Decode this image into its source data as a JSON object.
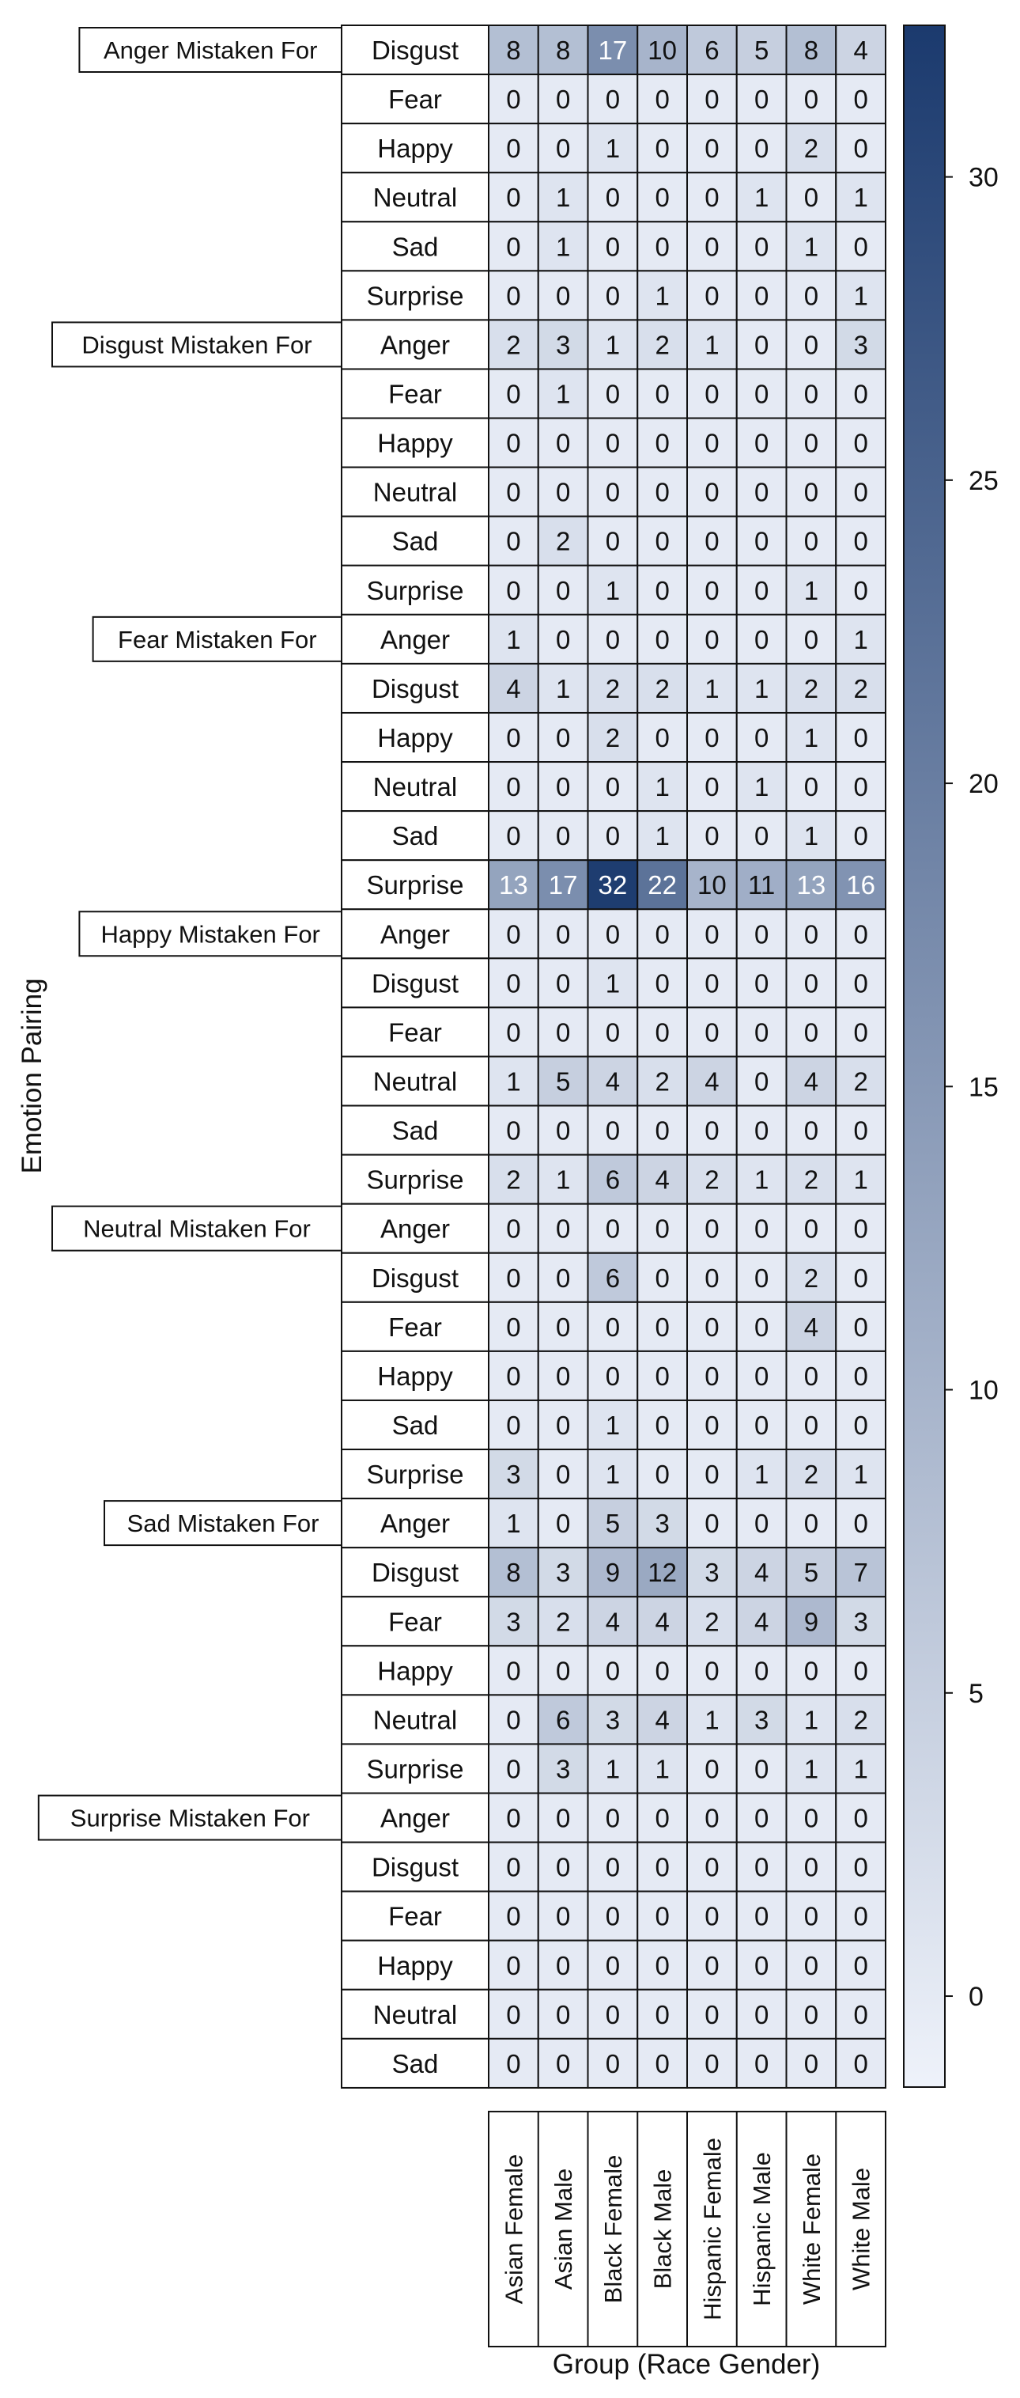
{
  "chart_data": {
    "type": "heatmap",
    "xlabel": "Group (Race Gender)",
    "ylabel": "Emotion Pairing",
    "columns": [
      "Asian Female",
      "Asian Male",
      "Black Female",
      "Black Male",
      "Hispanic Female",
      "Hispanic Male",
      "White Female",
      "White Male"
    ],
    "groups": [
      {
        "label": "Anger Mistaken For",
        "rows": [
          {
            "label": "Disgust",
            "values": [
              8,
              8,
              17,
              10,
              6,
              5,
              8,
              4
            ]
          },
          {
            "label": "Fear",
            "values": [
              0,
              0,
              0,
              0,
              0,
              0,
              0,
              0
            ]
          },
          {
            "label": "Happy",
            "values": [
              0,
              0,
              1,
              0,
              0,
              0,
              2,
              0
            ]
          },
          {
            "label": "Neutral",
            "values": [
              0,
              1,
              0,
              0,
              0,
              1,
              0,
              1
            ]
          },
          {
            "label": "Sad",
            "values": [
              0,
              1,
              0,
              0,
              0,
              0,
              1,
              0
            ]
          },
          {
            "label": "Surprise",
            "values": [
              0,
              0,
              0,
              1,
              0,
              0,
              0,
              1
            ]
          }
        ]
      },
      {
        "label": "Disgust Mistaken For",
        "rows": [
          {
            "label": "Anger",
            "values": [
              2,
              3,
              1,
              2,
              1,
              0,
              0,
              3
            ]
          },
          {
            "label": "Fear",
            "values": [
              0,
              1,
              0,
              0,
              0,
              0,
              0,
              0
            ]
          },
          {
            "label": "Happy",
            "values": [
              0,
              0,
              0,
              0,
              0,
              0,
              0,
              0
            ]
          },
          {
            "label": "Neutral",
            "values": [
              0,
              0,
              0,
              0,
              0,
              0,
              0,
              0
            ]
          },
          {
            "label": "Sad",
            "values": [
              0,
              2,
              0,
              0,
              0,
              0,
              0,
              0
            ]
          },
          {
            "label": "Surprise",
            "values": [
              0,
              0,
              1,
              0,
              0,
              0,
              1,
              0
            ]
          }
        ]
      },
      {
        "label": "Fear Mistaken For",
        "rows": [
          {
            "label": "Anger",
            "values": [
              1,
              0,
              0,
              0,
              0,
              0,
              0,
              1
            ]
          },
          {
            "label": "Disgust",
            "values": [
              4,
              1,
              2,
              2,
              1,
              1,
              2,
              2
            ]
          },
          {
            "label": "Happy",
            "values": [
              0,
              0,
              2,
              0,
              0,
              0,
              1,
              0
            ]
          },
          {
            "label": "Neutral",
            "values": [
              0,
              0,
              0,
              1,
              0,
              1,
              0,
              0
            ]
          },
          {
            "label": "Sad",
            "values": [
              0,
              0,
              0,
              1,
              0,
              0,
              1,
              0
            ]
          },
          {
            "label": "Surprise",
            "values": [
              13,
              17,
              32,
              22,
              10,
              11,
              13,
              16
            ]
          }
        ]
      },
      {
        "label": "Happy Mistaken For",
        "rows": [
          {
            "label": "Anger",
            "values": [
              0,
              0,
              0,
              0,
              0,
              0,
              0,
              0
            ]
          },
          {
            "label": "Disgust",
            "values": [
              0,
              0,
              1,
              0,
              0,
              0,
              0,
              0
            ]
          },
          {
            "label": "Fear",
            "values": [
              0,
              0,
              0,
              0,
              0,
              0,
              0,
              0
            ]
          },
          {
            "label": "Neutral",
            "values": [
              1,
              5,
              4,
              2,
              4,
              0,
              4,
              2
            ]
          },
          {
            "label": "Sad",
            "values": [
              0,
              0,
              0,
              0,
              0,
              0,
              0,
              0
            ]
          },
          {
            "label": "Surprise",
            "values": [
              2,
              1,
              6,
              4,
              2,
              1,
              2,
              1
            ]
          }
        ]
      },
      {
        "label": "Neutral Mistaken For",
        "rows": [
          {
            "label": "Anger",
            "values": [
              0,
              0,
              0,
              0,
              0,
              0,
              0,
              0
            ]
          },
          {
            "label": "Disgust",
            "values": [
              0,
              0,
              6,
              0,
              0,
              0,
              2,
              0
            ]
          },
          {
            "label": "Fear",
            "values": [
              0,
              0,
              0,
              0,
              0,
              0,
              4,
              0
            ]
          },
          {
            "label": "Happy",
            "values": [
              0,
              0,
              0,
              0,
              0,
              0,
              0,
              0
            ]
          },
          {
            "label": "Sad",
            "values": [
              0,
              0,
              1,
              0,
              0,
              0,
              0,
              0
            ]
          },
          {
            "label": "Surprise",
            "values": [
              3,
              0,
              1,
              0,
              0,
              1,
              2,
              1
            ]
          }
        ]
      },
      {
        "label": "Sad Mistaken For",
        "rows": [
          {
            "label": "Anger",
            "values": [
              1,
              0,
              5,
              3,
              0,
              0,
              0,
              0
            ]
          },
          {
            "label": "Disgust",
            "values": [
              8,
              3,
              9,
              12,
              3,
              4,
              5,
              7
            ]
          },
          {
            "label": "Fear",
            "values": [
              3,
              2,
              4,
              4,
              2,
              4,
              9,
              3
            ]
          },
          {
            "label": "Happy",
            "values": [
              0,
              0,
              0,
              0,
              0,
              0,
              0,
              0
            ]
          },
          {
            "label": "Neutral",
            "values": [
              0,
              6,
              3,
              4,
              1,
              3,
              1,
              2
            ]
          },
          {
            "label": "Surprise",
            "values": [
              0,
              3,
              1,
              1,
              0,
              0,
              1,
              1
            ]
          }
        ]
      },
      {
        "label": "Surprise Mistaken For",
        "rows": [
          {
            "label": "Anger",
            "values": [
              0,
              0,
              0,
              0,
              0,
              0,
              0,
              0
            ]
          },
          {
            "label": "Disgust",
            "values": [
              0,
              0,
              0,
              0,
              0,
              0,
              0,
              0
            ]
          },
          {
            "label": "Fear",
            "values": [
              0,
              0,
              0,
              0,
              0,
              0,
              0,
              0
            ]
          },
          {
            "label": "Happy",
            "values": [
              0,
              0,
              0,
              0,
              0,
              0,
              0,
              0
            ]
          },
          {
            "label": "Neutral",
            "values": [
              0,
              0,
              0,
              0,
              0,
              0,
              0,
              0
            ]
          },
          {
            "label": "Sad",
            "values": [
              0,
              0,
              0,
              0,
              0,
              0,
              0,
              0
            ]
          }
        ]
      }
    ],
    "colorbar": {
      "ticks": [
        0,
        5,
        10,
        15,
        20,
        25,
        30
      ],
      "range": [
        -1.5,
        32.5
      ],
      "low_color": "#eef2fa",
      "high_color": "#1b3a6e",
      "placement": "right"
    },
    "grid": true,
    "legend": "none"
  }
}
